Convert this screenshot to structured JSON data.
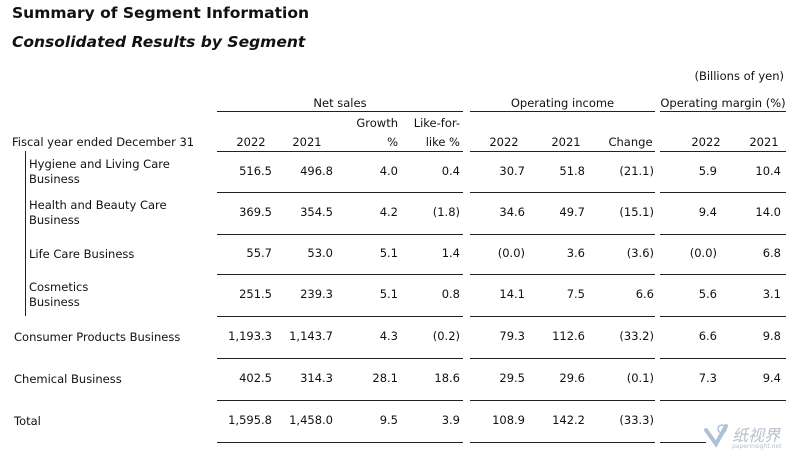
{
  "title": "Summary of Segment Information",
  "subtitle": "Consolidated Results by Segment",
  "unit": "(Billions of yen)",
  "groups": {
    "net_sales": "Net sales",
    "operating_income": "Operating income",
    "operating_margin": "Operating margin (%)"
  },
  "fiscal_label": "Fiscal year ended December 31",
  "columns": {
    "ns_2022": "2022",
    "ns_2021": "2021",
    "growth_line1": "Growth",
    "growth_line2": "%",
    "lfl_line1": "Like-for-",
    "lfl_line2": "like %",
    "oi_2022": "2022",
    "oi_2021": "2021",
    "oi_change": "Change",
    "om_2022": "2022",
    "om_2021": "2021"
  },
  "rows": [
    {
      "label": [
        "Hygiene and Living Care",
        "Business"
      ],
      "values": [
        "516.5",
        "496.8",
        "4.0",
        "0.4",
        "30.7",
        "51.8",
        "(21.1)",
        "5.9",
        "10.4"
      ]
    },
    {
      "label": [
        "Health and Beauty Care",
        "Business"
      ],
      "values": [
        "369.5",
        "354.5",
        "4.2",
        "(1.8)",
        "34.6",
        "49.7",
        "(15.1)",
        "9.4",
        "14.0"
      ]
    },
    {
      "label": [
        "Life Care Business"
      ],
      "values": [
        "55.7",
        "53.0",
        "5.1",
        "1.4",
        "(0.0)",
        "3.6",
        "(3.6)",
        "(0.0)",
        "6.8"
      ]
    },
    {
      "label": [
        "Cosmetics",
        "Business"
      ],
      "values": [
        "251.5",
        "239.3",
        "5.1",
        "0.8",
        "14.1",
        "7.5",
        "6.6",
        "5.6",
        "3.1"
      ]
    },
    {
      "label": [
        "Consumer Products Business"
      ],
      "values": [
        "1,193.3",
        "1,143.7",
        "4.3",
        "(0.2)",
        "79.3",
        "112.6",
        "(33.2)",
        "6.6",
        "9.8"
      ]
    },
    {
      "label": [
        "Chemical Business"
      ],
      "values": [
        "402.5",
        "314.3",
        "28.1",
        "18.6",
        "29.5",
        "29.6",
        "(0.1)",
        "7.3",
        "9.4"
      ]
    },
    {
      "label": [
        "Total"
      ],
      "values": [
        "1,595.8",
        "1,458.0",
        "9.5",
        "3.9",
        "108.9",
        "142.2",
        "(33.3)",
        "",
        ""
      ]
    }
  ],
  "watermark": {
    "text": "纸视界",
    "sub": "paperinsight.net"
  }
}
